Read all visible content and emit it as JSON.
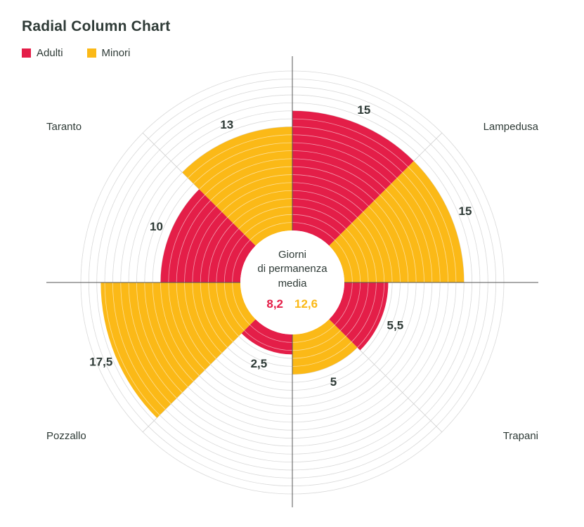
{
  "title": "Radial Column Chart",
  "legend": [
    {
      "label": "Adulti",
      "color": "#e41e48"
    },
    {
      "label": "Minori",
      "color": "#fbb917"
    }
  ],
  "center": {
    "line1": "Giorni",
    "line2": "di permanenza",
    "line3": "media",
    "adulti_avg": "8,2",
    "minori_avg": "12,6"
  },
  "chart_data": {
    "type": "radial-column",
    "title": "Radial Column Chart",
    "rmax": 20,
    "ring_step": 1,
    "categories": [
      "Lampedusa",
      "Trapani",
      "Pozzallo",
      "Taranto"
    ],
    "series": [
      {
        "name": "Adulti",
        "color": "#e41e48",
        "values": [
          15,
          5.5,
          2.5,
          10
        ]
      },
      {
        "name": "Minori",
        "color": "#fbb917",
        "values": [
          15,
          5,
          17.5,
          13
        ]
      }
    ],
    "value_labels": {
      "Adulti": [
        "15",
        "5,5",
        "2,5",
        "10"
      ],
      "Minori": [
        "15",
        "5",
        "17,5",
        "13"
      ]
    },
    "center_averages": {
      "Adulti": "8,2",
      "Minori": "12,6"
    }
  }
}
